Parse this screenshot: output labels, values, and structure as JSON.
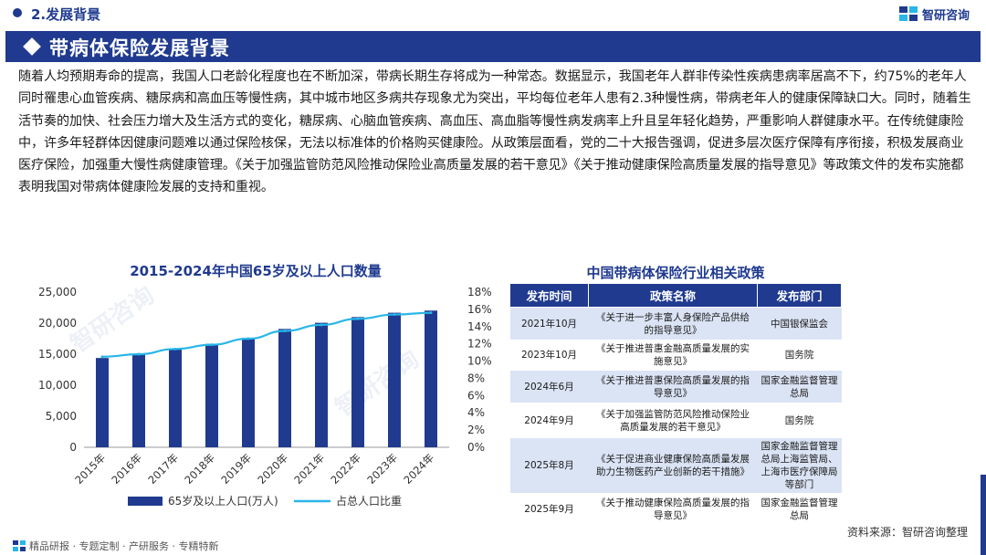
{
  "header": {
    "section": "2.发展背景",
    "brand": "智研咨询",
    "title": "带病体保险发展背景"
  },
  "body_text": "随着人均预期寿命的提高，我国人口老龄化程度也在不断加深，带病长期生存将成为一种常态。数据显示，我国老年人群非传染性疾病患病率居高不下，约75%的老年人同时罹患心血管疾病、糖尿病和高血压等慢性病，其中城市地区多病共存现象尤为突出，平均每位老年人患有2.3种慢性病，带病老年人的健康保障缺口大。同时，随着生活节奏的加快、社会压力增大及生活方式的变化，糖尿病、心脑血管疾病、高血压、高血脂等慢性病发病率上升且呈年轻化趋势，严重影响人群健康水平。在传统健康险中，许多年轻群体因健康问题难以通过保险核保，无法以标准体的价格购买健康险。从政策层面看，党的二十大报告强调，促进多层次医疗保障有序衔接，积极发展商业医疗保险，加强重大慢性病健康管理。《关于加强监管防范风险推动保险业高质量发展的若干意见》《关于推动健康保险高质量发展的指导意见》等政策文件的发布实施都表明我国对带病体健康险发展的支持和重视。",
  "chart_data": {
    "type": "bar",
    "title": "2015-2024年中国65岁及以上人口数量",
    "categories": [
      "2015年",
      "2016年",
      "2017年",
      "2018年",
      "2019年",
      "2020年",
      "2021年",
      "2022年",
      "2023年",
      "2024年"
    ],
    "series": [
      {
        "name": "65岁及以上人口(万人)",
        "type": "bar",
        "axis": "left",
        "values": [
          14386,
          15003,
          15831,
          16658,
          17603,
          19064,
          20056,
          20978,
          21676,
          22023
        ]
      },
      {
        "name": "占总人口比重",
        "type": "line",
        "axis": "right",
        "values": [
          10.5,
          10.8,
          11.4,
          11.9,
          12.6,
          13.5,
          14.2,
          14.9,
          15.4,
          15.6
        ]
      }
    ],
    "y_left": {
      "min": 0,
      "max": 25000,
      "ticks": [
        "0",
        "5,000",
        "10,000",
        "15,000",
        "20,000",
        "25,000"
      ]
    },
    "y_right": {
      "min": 0,
      "max": 18,
      "ticks": [
        "0%",
        "2%",
        "4%",
        "6%",
        "8%",
        "10%",
        "12%",
        "14%",
        "16%",
        "18%"
      ]
    },
    "colors": {
      "bar": "#1f3a8f",
      "line": "#29b6e8"
    },
    "legend_position": "bottom"
  },
  "policy_table": {
    "title": "中国带病体保险行业相关政策",
    "headers": [
      "发布时间",
      "政策名称",
      "发布部门"
    ],
    "rows": [
      {
        "date": "2021年10月",
        "name": "《关于进一步丰富人身保险产品供给的指导意见》",
        "dept": "中国银保监会"
      },
      {
        "date": "2023年10月",
        "name": "《关于推进普惠金融高质量发展的实施意见》",
        "dept": "国务院"
      },
      {
        "date": "2024年6月",
        "name": "《关于推进普惠保险高质量发展的指导意见》",
        "dept": "国家金融监督管理总局"
      },
      {
        "date": "2024年9月",
        "name": "《关于加强监管防范风险推动保险业高质量发展的若干意见》",
        "dept": "国务院"
      },
      {
        "date": "2025年8月",
        "name": "《关于促进商业健康保险高质量发展助力生物医药产业创新的若干措施》",
        "dept": "国家金融监督管理总局上海监管局、上海市医疗保障局等部门"
      },
      {
        "date": "2025年9月",
        "name": "《关于推动健康保险高质量发展的指导意见》",
        "dept": "国家金融监督管理总局"
      }
    ]
  },
  "source": "资料来源：智研咨询整理",
  "footer": "精品研报 · 专题定制 · 产研服务 · 专精特新",
  "watermark": "智研咨询"
}
